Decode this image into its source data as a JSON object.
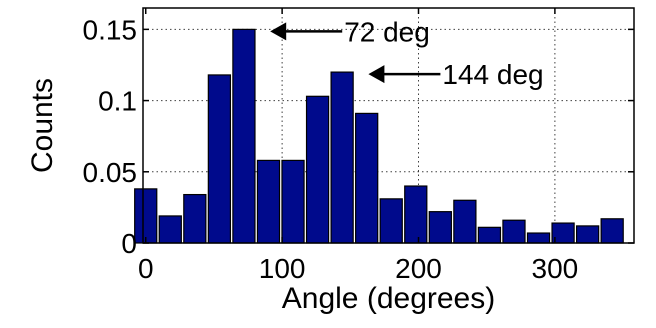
{
  "chart_data": {
    "type": "bar",
    "title": "",
    "xlabel": "Angle (degrees)",
    "ylabel": "Counts",
    "xlim": [
      -2,
      358
    ],
    "ylim": [
      0,
      0.165
    ],
    "xticks": [
      0,
      100,
      200,
      300
    ],
    "xtick_labels": [
      "0",
      "100",
      "200",
      "300"
    ],
    "yticks": [
      0,
      0.05,
      0.1,
      0.15
    ],
    "ytick_labels": [
      "0",
      "0.05",
      "0.1",
      "0.15"
    ],
    "grid": true,
    "bar_color": "#000a8c",
    "bin_width": 18,
    "x": [
      0,
      18,
      36,
      54,
      72,
      90,
      108,
      126,
      144,
      162,
      180,
      198,
      216,
      234,
      252,
      270,
      288,
      306,
      324,
      342
    ],
    "values": [
      0.038,
      0.019,
      0.034,
      0.118,
      0.15,
      0.058,
      0.058,
      0.103,
      0.12,
      0.091,
      0.031,
      0.04,
      0.022,
      0.03,
      0.011,
      0.016,
      0.007,
      0.014,
      0.012,
      0.017
    ],
    "annotations": [
      {
        "text": "72 deg",
        "x": 72,
        "y": 0.15
      },
      {
        "text": "144 deg",
        "x": 144,
        "y": 0.12
      }
    ]
  }
}
